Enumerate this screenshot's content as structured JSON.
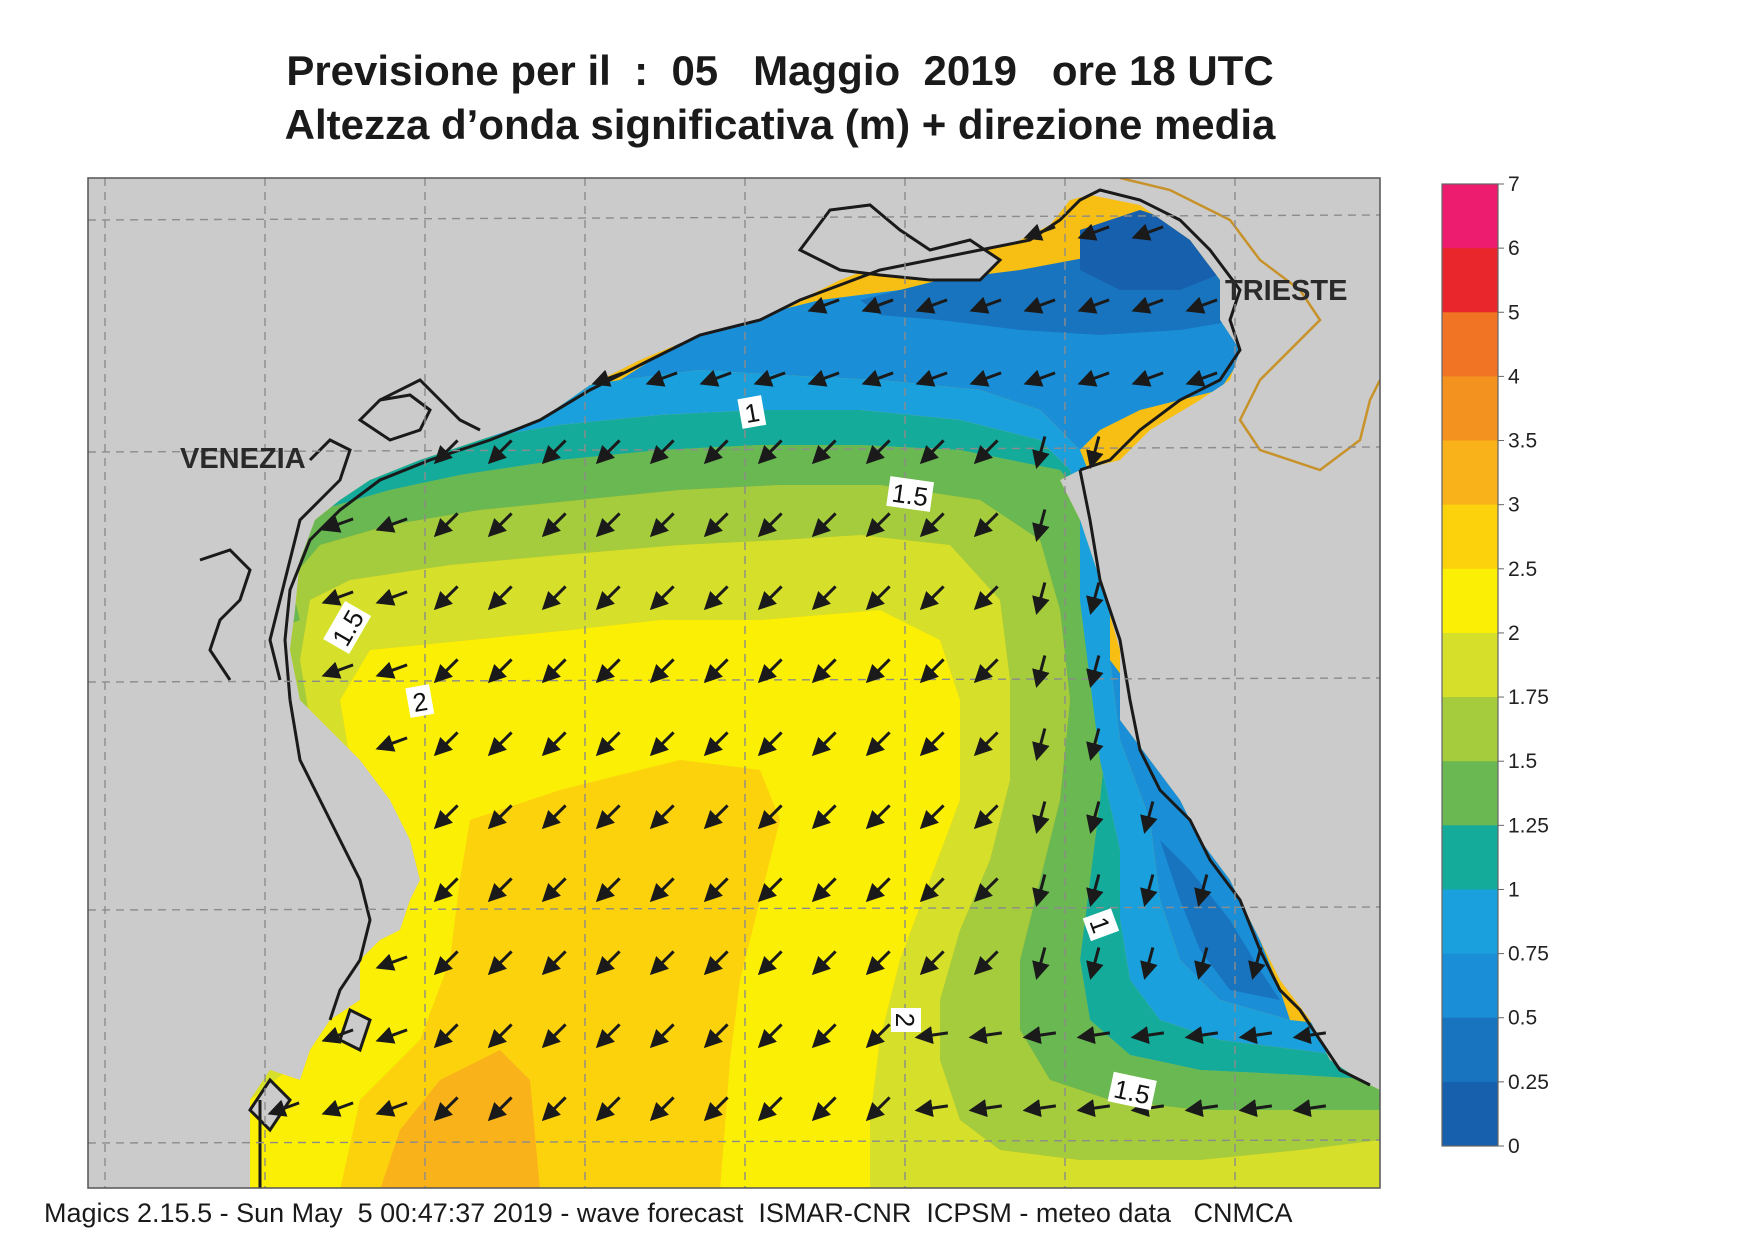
{
  "title": {
    "line1": "Previsione per il  :  05   Maggio  2019   ore 18 UTC",
    "line2": "Altezza d’onda significativa (m) + direzione media"
  },
  "places": [
    {
      "name": "VENEZIA"
    },
    {
      "name": "TRIESTE"
    }
  ],
  "contour_labels": [
    "1",
    "1.5",
    "1.5",
    "2",
    "1",
    "2",
    "1.5"
  ],
  "legend": {
    "levels": [
      "7",
      "6",
      "5",
      "4",
      "3.5",
      "3",
      "2.5",
      "2",
      "1.75",
      "1.5",
      "1.25",
      "1",
      "0.75",
      "0.5",
      "0.25",
      "0"
    ],
    "colors": [
      "#ee1c6e",
      "#e8262b",
      "#f07424",
      "#f4921f",
      "#f9b21a",
      "#fcd20c",
      "#fbef05",
      "#d6e02a",
      "#a4cc3c",
      "#6ab852",
      "#14ab9b",
      "#1aa0dd",
      "#1a8fd8",
      "#1874bf",
      "#1760ad"
    ]
  },
  "footer": "Magics 2.15.5 - Sun May  5 00:47:37 2019 - wave forecast  ISMAR-CNR  ICPSM - meteo data   CNMCA"
}
